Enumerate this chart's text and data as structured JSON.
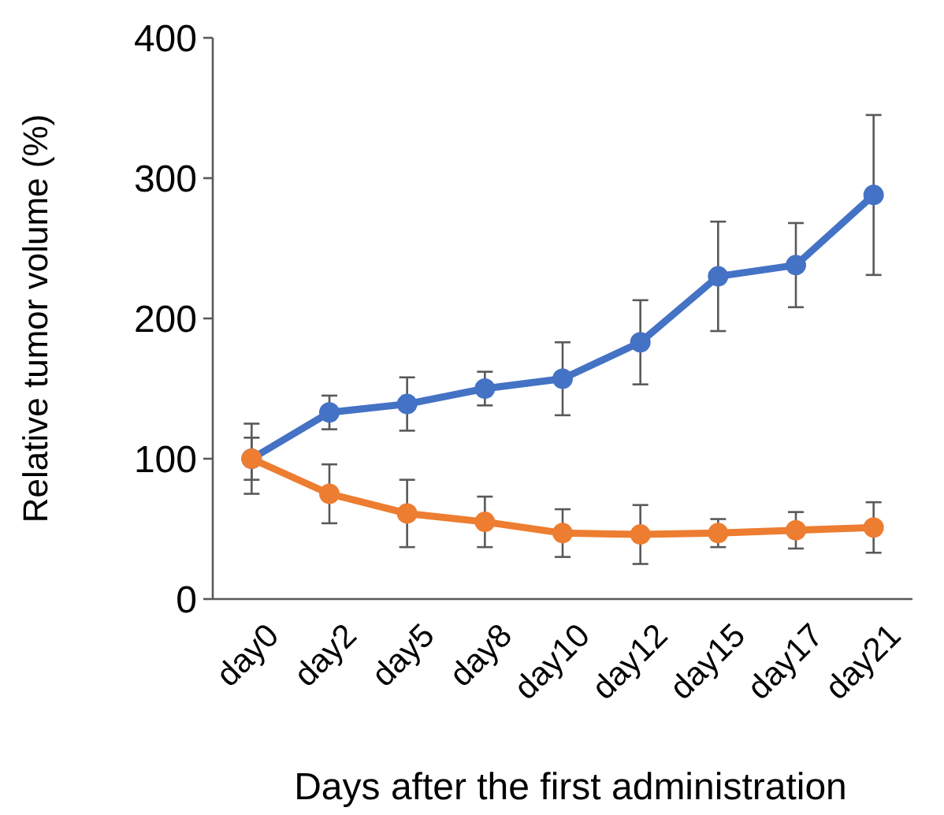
{
  "chart_data": {
    "type": "line",
    "xlabel": "Days after the first administration",
    "ylabel": "Relative tumor volume (%)",
    "categories": [
      "day0",
      "day2",
      "day5",
      "day8",
      "day10",
      "day12",
      "day15",
      "day17",
      "day21"
    ],
    "series": [
      {
        "color": "#4472c4",
        "values": [
          100,
          133,
          139,
          150,
          157,
          183,
          230,
          238,
          288
        ],
        "errors": [
          25,
          12,
          19,
          12,
          26,
          30,
          39,
          30,
          57
        ]
      },
      {
        "color": "#ed7d31",
        "values": [
          100,
          75,
          61,
          55,
          47,
          46,
          47,
          49,
          51
        ],
        "errors": [
          15,
          21,
          24,
          18,
          17,
          21,
          10,
          13,
          18
        ]
      }
    ],
    "ylim": [
      0,
      400
    ],
    "yticks": [
      0,
      100,
      200,
      300,
      400
    ],
    "grid": false,
    "marker": "circle",
    "line_style": "solid"
  }
}
